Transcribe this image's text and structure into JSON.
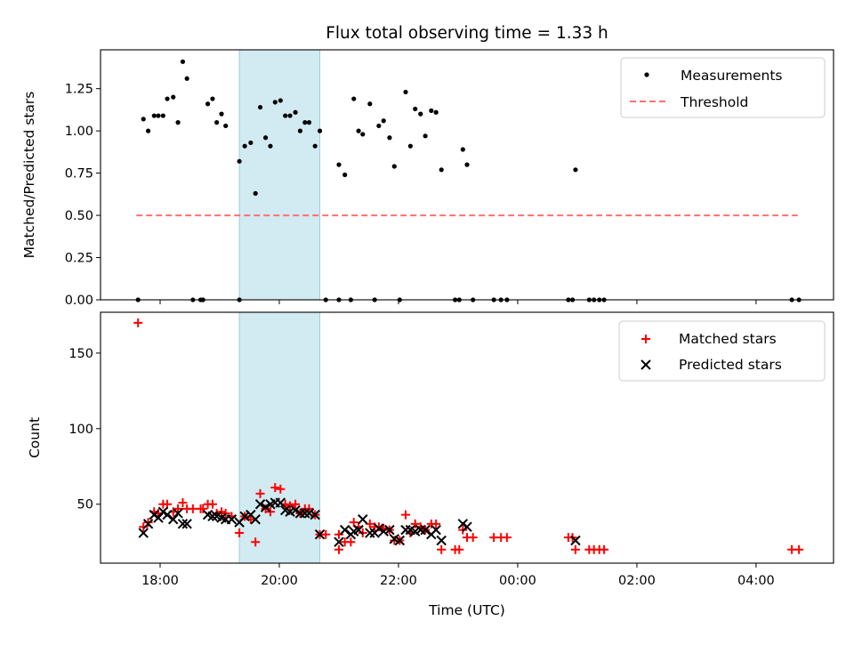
{
  "chart_data": [
    {
      "type": "scatter",
      "title": "Flux total observing time = 1.33 h",
      "xlabel": "",
      "ylabel": "Matched/Predicted stars",
      "xlim": [
        17.0,
        29.3
      ],
      "ylim": [
        0,
        1.48
      ],
      "yticks": [
        0.0,
        0.25,
        0.5,
        0.75,
        1.0,
        1.25
      ],
      "ytick_labels": [
        "0.00",
        "0.25",
        "0.50",
        "0.75",
        "1.00",
        "1.25"
      ],
      "shaded_span": [
        19.33,
        20.68
      ],
      "legend": {
        "placement": "top-right",
        "entries": [
          "Measurements",
          "Threshold"
        ]
      },
      "threshold": {
        "name": "Threshold",
        "y": 0.5,
        "x": [
          17.6,
          28.7
        ],
        "color": "#ff7070"
      },
      "series": [
        {
          "name": "Measurements",
          "color": "#000000",
          "points": [
            [
              17.63,
              0
            ],
            [
              17.72,
              1.07
            ],
            [
              17.8,
              1.0
            ],
            [
              17.9,
              1.09
            ],
            [
              17.97,
              1.09
            ],
            [
              18.05,
              1.09
            ],
            [
              18.12,
              1.19
            ],
            [
              18.22,
              1.2
            ],
            [
              18.3,
              1.05
            ],
            [
              18.38,
              1.41
            ],
            [
              18.45,
              1.31
            ],
            [
              18.55,
              0
            ],
            [
              18.68,
              0
            ],
            [
              18.72,
              0
            ],
            [
              18.8,
              1.16
            ],
            [
              18.88,
              1.19
            ],
            [
              18.95,
              1.05
            ],
            [
              19.03,
              1.1
            ],
            [
              19.1,
              1.03
            ],
            [
              19.33,
              0
            ],
            [
              19.33,
              0.82
            ],
            [
              19.42,
              0.91
            ],
            [
              19.52,
              0.93
            ],
            [
              19.6,
              0.63
            ],
            [
              19.68,
              1.14
            ],
            [
              19.77,
              0.96
            ],
            [
              19.85,
              0.91
            ],
            [
              19.93,
              1.17
            ],
            [
              20.02,
              1.18
            ],
            [
              20.1,
              1.09
            ],
            [
              20.18,
              1.09
            ],
            [
              20.27,
              1.11
            ],
            [
              20.35,
              1.0
            ],
            [
              20.43,
              1.05
            ],
            [
              20.5,
              1.05
            ],
            [
              20.6,
              0.91
            ],
            [
              20.68,
              1.0
            ],
            [
              20.78,
              0
            ],
            [
              21.0,
              0
            ],
            [
              21.0,
              0.8
            ],
            [
              21.1,
              0.74
            ],
            [
              21.2,
              0
            ],
            [
              21.25,
              1.19
            ],
            [
              21.33,
              1.0
            ],
            [
              21.4,
              0.98
            ],
            [
              21.52,
              1.16
            ],
            [
              21.6,
              0
            ],
            [
              21.67,
              1.03
            ],
            [
              21.75,
              1.06
            ],
            [
              21.85,
              0.96
            ],
            [
              21.93,
              0.79
            ],
            [
              22.02,
              0
            ],
            [
              22.12,
              1.23
            ],
            [
              22.2,
              0.91
            ],
            [
              22.28,
              1.13
            ],
            [
              22.37,
              1.1
            ],
            [
              22.45,
              0.97
            ],
            [
              22.55,
              1.12
            ],
            [
              22.63,
              1.11
            ],
            [
              22.72,
              0.77
            ],
            [
              22.95,
              0
            ],
            [
              23.02,
              0
            ],
            [
              23.08,
              0.89
            ],
            [
              23.15,
              0.8
            ],
            [
              23.25,
              0
            ],
            [
              23.6,
              0
            ],
            [
              23.72,
              0
            ],
            [
              23.82,
              0
            ],
            [
              24.85,
              0
            ],
            [
              24.92,
              0
            ],
            [
              24.97,
              0.77
            ],
            [
              25.2,
              0
            ],
            [
              25.28,
              0
            ],
            [
              25.37,
              0
            ],
            [
              25.45,
              0
            ],
            [
              28.6,
              0
            ],
            [
              28.72,
              0
            ]
          ]
        }
      ]
    },
    {
      "type": "scatter",
      "title": "",
      "xlabel": "Time (UTC)",
      "ylabel": "Count",
      "xlim": [
        17.0,
        29.3
      ],
      "ylim": [
        11,
        177
      ],
      "yticks": [
        50,
        100,
        150
      ],
      "ytick_labels": [
        "50",
        "100",
        "150"
      ],
      "xticks": [
        18,
        20,
        22,
        24,
        26,
        28
      ],
      "xtick_labels": [
        "18:00",
        "20:00",
        "22:00",
        "00:00",
        "02:00",
        "04:00"
      ],
      "shaded_span": [
        19.33,
        20.68
      ],
      "legend": {
        "placement": "top-right",
        "entries": [
          "Matched stars",
          "Predicted stars"
        ]
      },
      "series": [
        {
          "name": "Matched stars",
          "marker": "plus",
          "color": "#ff0000",
          "points": [
            [
              17.63,
              170
            ],
            [
              17.72,
              35
            ],
            [
              17.8,
              38
            ],
            [
              17.9,
              45
            ],
            [
              17.97,
              44
            ],
            [
              18.05,
              50
            ],
            [
              18.12,
              50
            ],
            [
              18.22,
              45
            ],
            [
              18.3,
              47
            ],
            [
              18.38,
              51
            ],
            [
              18.45,
              47
            ],
            [
              18.55,
              47
            ],
            [
              18.68,
              47
            ],
            [
              18.72,
              47
            ],
            [
              18.8,
              50
            ],
            [
              18.88,
              50
            ],
            [
              18.95,
              44
            ],
            [
              19.03,
              45
            ],
            [
              19.1,
              44
            ],
            [
              19.2,
              42
            ],
            [
              19.33,
              31
            ],
            [
              19.42,
              42
            ],
            [
              19.52,
              40
            ],
            [
              19.6,
              25
            ],
            [
              19.68,
              57
            ],
            [
              19.77,
              47
            ],
            [
              19.85,
              45
            ],
            [
              19.93,
              61
            ],
            [
              20.02,
              60
            ],
            [
              20.1,
              50
            ],
            [
              20.18,
              49
            ],
            [
              20.27,
              50
            ],
            [
              20.35,
              44
            ],
            [
              20.43,
              47
            ],
            [
              20.5,
              47
            ],
            [
              20.6,
              43
            ],
            [
              20.68,
              30
            ],
            [
              20.78,
              30
            ],
            [
              21.0,
              30
            ],
            [
              21.0,
              20
            ],
            [
              21.1,
              25
            ],
            [
              21.2,
              25
            ],
            [
              21.25,
              38
            ],
            [
              21.33,
              35
            ],
            [
              21.4,
              31
            ],
            [
              21.52,
              37
            ],
            [
              21.6,
              35
            ],
            [
              21.67,
              35
            ],
            [
              21.75,
              34
            ],
            [
              21.85,
              33
            ],
            [
              21.93,
              26
            ],
            [
              22.02,
              26
            ],
            [
              22.12,
              43
            ],
            [
              22.2,
              31
            ],
            [
              22.28,
              37
            ],
            [
              22.37,
              35
            ],
            [
              22.45,
              33
            ],
            [
              22.55,
              37
            ],
            [
              22.63,
              37
            ],
            [
              22.72,
              20
            ],
            [
              22.95,
              20
            ],
            [
              23.02,
              20
            ],
            [
              23.08,
              33
            ],
            [
              23.15,
              28
            ],
            [
              23.25,
              28
            ],
            [
              23.6,
              28
            ],
            [
              23.72,
              28
            ],
            [
              23.82,
              28
            ],
            [
              24.85,
              28
            ],
            [
              24.92,
              28
            ],
            [
              24.97,
              20
            ],
            [
              25.2,
              20
            ],
            [
              25.28,
              20
            ],
            [
              25.37,
              20
            ],
            [
              25.45,
              20
            ],
            [
              28.6,
              20
            ],
            [
              28.72,
              20
            ]
          ]
        },
        {
          "name": "Predicted stars",
          "marker": "x",
          "color": "#000000",
          "points": [
            [
              17.72,
              31
            ],
            [
              17.8,
              37
            ],
            [
              17.9,
              43
            ],
            [
              17.97,
              41
            ],
            [
              18.05,
              45
            ],
            [
              18.12,
              43
            ],
            [
              18.22,
              40
            ],
            [
              18.3,
              44
            ],
            [
              18.38,
              37
            ],
            [
              18.45,
              37
            ],
            [
              18.8,
              43
            ],
            [
              18.88,
              42
            ],
            [
              18.95,
              42
            ],
            [
              19.03,
              41
            ],
            [
              19.1,
              40
            ],
            [
              19.2,
              40
            ],
            [
              19.33,
              38
            ],
            [
              19.42,
              42
            ],
            [
              19.52,
              43
            ],
            [
              19.6,
              40
            ],
            [
              19.68,
              50
            ],
            [
              19.77,
              48
            ],
            [
              19.85,
              50
            ],
            [
              19.93,
              51
            ],
            [
              20.02,
              51
            ],
            [
              20.1,
              46
            ],
            [
              20.18,
              45
            ],
            [
              20.27,
              46
            ],
            [
              20.35,
              44
            ],
            [
              20.43,
              44
            ],
            [
              20.5,
              44
            ],
            [
              20.6,
              43
            ],
            [
              20.68,
              30
            ],
            [
              21.0,
              25
            ],
            [
              21.1,
              33
            ],
            [
              21.2,
              30
            ],
            [
              21.25,
              32
            ],
            [
              21.33,
              33
            ],
            [
              21.4,
              40
            ],
            [
              21.52,
              31
            ],
            [
              21.6,
              31
            ],
            [
              21.67,
              34
            ],
            [
              21.75,
              32
            ],
            [
              21.85,
              33
            ],
            [
              21.93,
              27
            ],
            [
              22.02,
              26
            ],
            [
              22.12,
              33
            ],
            [
              22.2,
              33
            ],
            [
              22.28,
              32
            ],
            [
              22.37,
              33
            ],
            [
              22.45,
              33
            ],
            [
              22.55,
              30
            ],
            [
              22.63,
              33
            ],
            [
              22.72,
              26
            ],
            [
              23.08,
              37
            ],
            [
              23.15,
              35
            ],
            [
              24.97,
              26
            ]
          ]
        }
      ]
    }
  ]
}
